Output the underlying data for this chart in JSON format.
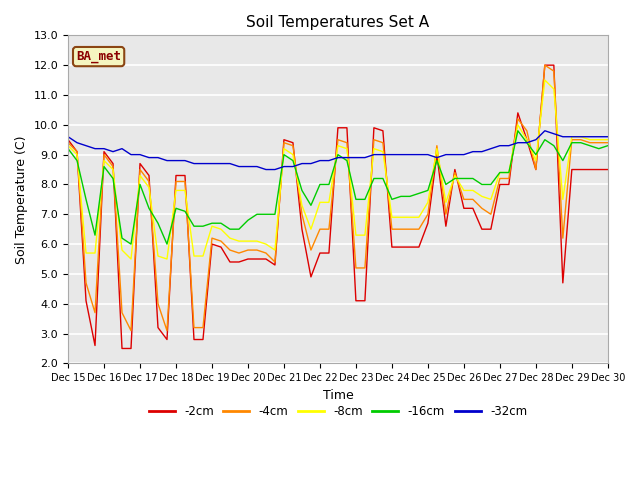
{
  "title": "Soil Temperatures Set A",
  "xlabel": "Time",
  "ylabel": "Soil Temperature (C)",
  "ylim": [
    2.0,
    13.0
  ],
  "yticks": [
    2.0,
    3.0,
    4.0,
    5.0,
    6.0,
    7.0,
    8.0,
    9.0,
    10.0,
    11.0,
    12.0,
    13.0
  ],
  "annotation": "BA_met",
  "plot_bg_color": "#e8e8e8",
  "fig_bg_color": "#ffffff",
  "x_labels": [
    "Dec 15",
    "Dec 16",
    "Dec 17",
    "Dec 18",
    "Dec 19",
    "Dec 20",
    "Dec 21",
    "Dec 22",
    "Dec 23",
    "Dec 24",
    "Dec 25",
    "Dec 26",
    "Dec 27",
    "Dec 28",
    "Dec 29",
    "Dec 30"
  ],
  "series": {
    "-2cm": {
      "color": "#dd0000",
      "data": [
        9.5,
        9.1,
        4.1,
        2.6,
        9.1,
        8.7,
        2.5,
        2.5,
        8.7,
        8.3,
        3.2,
        2.8,
        8.3,
        8.3,
        2.8,
        2.8,
        6.0,
        5.9,
        5.4,
        5.4,
        5.5,
        5.5,
        5.5,
        5.3,
        9.5,
        9.4,
        6.5,
        4.9,
        5.7,
        5.7,
        9.9,
        9.9,
        4.1,
        4.1,
        9.9,
        9.8,
        5.9,
        5.9,
        5.9,
        5.9,
        6.7,
        9.0,
        6.6,
        8.5,
        7.2,
        7.2,
        6.5,
        6.5,
        8.0,
        8.0,
        10.4,
        9.5,
        8.5,
        12.0,
        12.0,
        4.7,
        8.5,
        8.5,
        8.5,
        8.5,
        8.5
      ]
    },
    "-4cm": {
      "color": "#ff8800",
      "data": [
        9.4,
        9.1,
        4.7,
        3.7,
        9.0,
        8.6,
        3.7,
        3.1,
        8.5,
        8.1,
        4.0,
        3.1,
        8.1,
        8.1,
        3.2,
        3.2,
        6.2,
        6.1,
        5.8,
        5.7,
        5.8,
        5.8,
        5.7,
        5.4,
        9.4,
        9.3,
        7.0,
        5.8,
        6.5,
        6.5,
        9.5,
        9.4,
        5.2,
        5.2,
        9.5,
        9.4,
        6.5,
        6.5,
        6.5,
        6.5,
        7.0,
        9.3,
        7.0,
        8.4,
        7.5,
        7.5,
        7.2,
        7.0,
        8.2,
        8.2,
        10.2,
        9.8,
        8.5,
        12.0,
        11.8,
        6.2,
        9.5,
        9.5,
        9.4,
        9.4,
        9.4
      ]
    },
    "-8cm": {
      "color": "#ffff00",
      "data": [
        9.3,
        9.0,
        5.7,
        5.7,
        8.8,
        8.5,
        5.8,
        5.5,
        8.3,
        7.9,
        5.6,
        5.5,
        7.8,
        7.8,
        5.6,
        5.6,
        6.6,
        6.5,
        6.2,
        6.1,
        6.1,
        6.1,
        6.0,
        5.8,
        9.2,
        9.0,
        7.3,
        6.5,
        7.4,
        7.4,
        9.3,
        9.2,
        6.3,
        6.3,
        9.2,
        9.1,
        6.9,
        6.9,
        6.9,
        6.9,
        7.4,
        9.2,
        7.4,
        8.3,
        7.8,
        7.8,
        7.6,
        7.5,
        8.4,
        8.4,
        10.0,
        9.5,
        8.8,
        11.5,
        11.2,
        7.5,
        9.6,
        9.6,
        9.5,
        9.5,
        9.5
      ]
    },
    "-16cm": {
      "color": "#00cc00",
      "data": [
        9.2,
        8.8,
        7.5,
        6.3,
        8.6,
        8.2,
        6.2,
        6.0,
        8.0,
        7.2,
        6.7,
        6.0,
        7.2,
        7.1,
        6.6,
        6.6,
        6.7,
        6.7,
        6.5,
        6.5,
        6.8,
        7.0,
        7.0,
        7.0,
        9.0,
        8.8,
        7.8,
        7.3,
        8.0,
        8.0,
        9.0,
        8.8,
        7.5,
        7.5,
        8.2,
        8.2,
        7.5,
        7.6,
        7.6,
        7.7,
        7.8,
        8.8,
        8.0,
        8.2,
        8.2,
        8.2,
        8.0,
        8.0,
        8.4,
        8.4,
        9.8,
        9.4,
        9.0,
        9.5,
        9.3,
        8.8,
        9.4,
        9.4,
        9.3,
        9.2,
        9.3
      ]
    },
    "-32cm": {
      "color": "#0000cc",
      "data": [
        9.6,
        9.4,
        9.3,
        9.2,
        9.2,
        9.1,
        9.2,
        9.0,
        9.0,
        8.9,
        8.9,
        8.8,
        8.8,
        8.8,
        8.7,
        8.7,
        8.7,
        8.7,
        8.7,
        8.6,
        8.6,
        8.6,
        8.5,
        8.5,
        8.6,
        8.6,
        8.7,
        8.7,
        8.8,
        8.8,
        8.9,
        8.9,
        8.9,
        8.9,
        9.0,
        9.0,
        9.0,
        9.0,
        9.0,
        9.0,
        9.0,
        8.9,
        9.0,
        9.0,
        9.0,
        9.1,
        9.1,
        9.2,
        9.3,
        9.3,
        9.4,
        9.4,
        9.5,
        9.8,
        9.7,
        9.6,
        9.6,
        9.6,
        9.6,
        9.6,
        9.6
      ]
    }
  },
  "legend_order": [
    "-2cm",
    "-4cm",
    "-8cm",
    "-16cm",
    "-32cm"
  ]
}
